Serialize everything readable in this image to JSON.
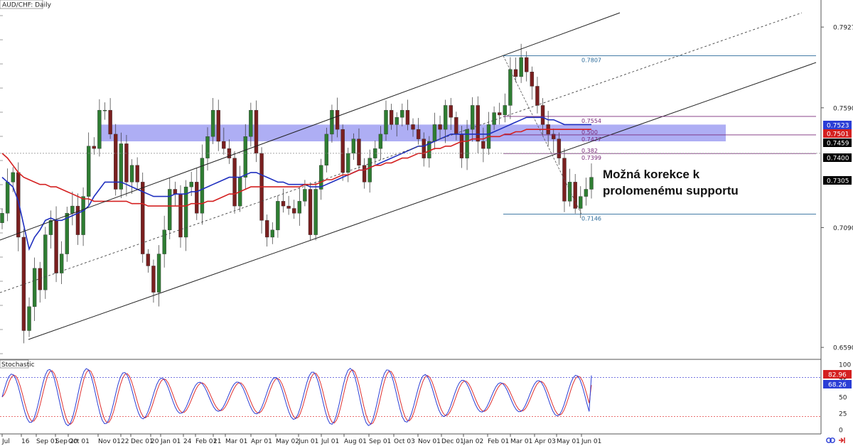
{
  "title": "AUD/CHF: Daily",
  "indicator_title": "Stochastic",
  "annotation": [
    "Možná korekce k",
    "prolomenému supportu"
  ],
  "colors": {
    "bull": "#2e7d32",
    "bear": "#7a1f1f",
    "ma_fast": "#1f2fbf",
    "ma_slow": "#d42020",
    "zone": "#8f8ff0",
    "stoch_k": "#2b3ed6",
    "stoch_d": "#e03030",
    "fib": "#7a2a7a",
    "fib_level": "#2a6a9a"
  },
  "icons": [
    "chain-link-icon",
    "arrow-exit-icon"
  ],
  "chart_data": {
    "type": "candlestick",
    "symbol": "AUD/CHF",
    "timeframe": "Daily",
    "x_ticks": [
      "Jul",
      "16",
      "Sep 01",
      "Sep 20",
      "Oct 01",
      "Nov 01",
      "22",
      "Dec 01",
      "20",
      "Jan 01",
      "24",
      "Feb 01",
      "21",
      "Mar 01",
      "Apr 01",
      "May 02",
      "Jun 01",
      "Jul 01",
      "Aug 01",
      "Sep 01",
      "Oct 03",
      "Nov 01",
      "Dec 01",
      "Jan 02",
      "Feb 01",
      "Mar 01",
      "Apr 03",
      "May 01",
      "Jun 01"
    ],
    "y_ticks": [
      "0.7927",
      "0.7590",
      "0.7090",
      "0.6590"
    ],
    "ylim": [
      0.654,
      0.804
    ],
    "price_badges": [
      {
        "label": "0.7523",
        "value": 0.7523,
        "color": "#2b3ed6"
      },
      {
        "label": "0.7501",
        "value": 0.7501,
        "color": "#d42020"
      },
      {
        "label": "0.7459",
        "value": 0.7459,
        "color": "#000000"
      },
      {
        "label": "0.7400",
        "value": 0.74,
        "color": "#000000"
      },
      {
        "label": "0.7305",
        "value": 0.7305,
        "color": "#000000"
      }
    ],
    "resistance_zone": [
      0.745,
      0.752
    ],
    "horizontal_line": 0.74,
    "fib_high": 0.7807,
    "fib_low": 0.7146,
    "fib_levels": [
      {
        "ratio_label": "",
        "price_label": "0.7807",
        "value": 0.7807
      },
      {
        "ratio_label": "",
        "price_label": "0.7554",
        "value": 0.7554
      },
      {
        "ratio_label": "0.500",
        "price_label": "0.7477",
        "value": 0.7477
      },
      {
        "ratio_label": "0.382",
        "price_label": "0.7399",
        "value": 0.7399
      },
      {
        "ratio_label": "",
        "price_label": "0.7146",
        "value": 0.7146
      }
    ],
    "series": [
      {
        "name": "Close",
        "closes": [
          0.715,
          0.728,
          0.732,
          0.705,
          0.666,
          0.676,
          0.692,
          0.683,
          0.706,
          0.712,
          0.69,
          0.698,
          0.715,
          0.718,
          0.706,
          0.722,
          0.743,
          0.742,
          0.758,
          0.758,
          0.748,
          0.725,
          0.744,
          0.728,
          0.735,
          0.728,
          0.698,
          0.693,
          0.682,
          0.698,
          0.708,
          0.725,
          0.723,
          0.705,
          0.726,
          0.728,
          0.715,
          0.738,
          0.747,
          0.758,
          0.745,
          0.742,
          0.738,
          0.718,
          0.73,
          0.747,
          0.758,
          0.74,
          0.712,
          0.705,
          0.708,
          0.72,
          0.718,
          0.717,
          0.715,
          0.72,
          0.725,
          0.706,
          0.725,
          0.735,
          0.748,
          0.758,
          0.75,
          0.732,
          0.74,
          0.746,
          0.735,
          0.728,
          0.738,
          0.742,
          0.748,
          0.758,
          0.752,
          0.755,
          0.758,
          0.752,
          0.75,
          0.746,
          0.738,
          0.745,
          0.752,
          0.75,
          0.76,
          0.755,
          0.748,
          0.738,
          0.75,
          0.76,
          0.745,
          0.742,
          0.752,
          0.757,
          0.756,
          0.76,
          0.775,
          0.772,
          0.78,
          0.774,
          0.768,
          0.76,
          0.752,
          0.748,
          0.746,
          0.738,
          0.72,
          0.728,
          0.717,
          0.722,
          0.725,
          0.73
        ]
      },
      {
        "name": "MA fast",
        "values": [
          0.73,
          0.728,
          0.726,
          0.72,
          0.71,
          0.7,
          0.705,
          0.708,
          0.712,
          0.713,
          0.712,
          0.712,
          0.713,
          0.714,
          0.715,
          0.716,
          0.718,
          0.722,
          0.725,
          0.728,
          0.728,
          0.728,
          0.728,
          0.727,
          0.726,
          0.725,
          0.724,
          0.723,
          0.722,
          0.722,
          0.722,
          0.722,
          0.723,
          0.723,
          0.723,
          0.724,
          0.724,
          0.725,
          0.726,
          0.727,
          0.728,
          0.729,
          0.73,
          0.73,
          0.73,
          0.731,
          0.732,
          0.732,
          0.731,
          0.73,
          0.729,
          0.728,
          0.728,
          0.727,
          0.727,
          0.727,
          0.727,
          0.726,
          0.726,
          0.726,
          0.727,
          0.728,
          0.729,
          0.73,
          0.731,
          0.732,
          0.733,
          0.733,
          0.734,
          0.735,
          0.736,
          0.737,
          0.738,
          0.739,
          0.74,
          0.741,
          0.742,
          0.743,
          0.743,
          0.744,
          0.745,
          0.746,
          0.747,
          0.748,
          0.748,
          0.748,
          0.748,
          0.748,
          0.748,
          0.748,
          0.748,
          0.749,
          0.75,
          0.751,
          0.752,
          0.753,
          0.754,
          0.755,
          0.755,
          0.755,
          0.755,
          0.754,
          0.754,
          0.753,
          0.752,
          0.752,
          0.752,
          0.752,
          0.752,
          0.752
        ]
      },
      {
        "name": "MA slow",
        "values": [
          0.74,
          0.738,
          0.735,
          0.732,
          0.73,
          0.729,
          0.728,
          0.727,
          0.727,
          0.726,
          0.726,
          0.725,
          0.724,
          0.723,
          0.722,
          0.721,
          0.721,
          0.72,
          0.72,
          0.72,
          0.72,
          0.72,
          0.72,
          0.72,
          0.719,
          0.719,
          0.719,
          0.718,
          0.718,
          0.718,
          0.718,
          0.718,
          0.718,
          0.718,
          0.718,
          0.719,
          0.719,
          0.719,
          0.72,
          0.72,
          0.721,
          0.722,
          0.723,
          0.723,
          0.724,
          0.725,
          0.726,
          0.726,
          0.726,
          0.726,
          0.726,
          0.726,
          0.726,
          0.726,
          0.726,
          0.726,
          0.727,
          0.727,
          0.727,
          0.728,
          0.729,
          0.729,
          0.73,
          0.731,
          0.731,
          0.732,
          0.733,
          0.733,
          0.734,
          0.735,
          0.735,
          0.736,
          0.736,
          0.737,
          0.738,
          0.738,
          0.739,
          0.74,
          0.74,
          0.741,
          0.742,
          0.742,
          0.743,
          0.743,
          0.744,
          0.745,
          0.745,
          0.746,
          0.746,
          0.746,
          0.747,
          0.747,
          0.747,
          0.748,
          0.748,
          0.749,
          0.749,
          0.75,
          0.75,
          0.75,
          0.75,
          0.75,
          0.75,
          0.75,
          0.75,
          0.75,
          0.75,
          0.75,
          0.75,
          0.75
        ]
      }
    ],
    "stochastic": {
      "y_ticks": [
        "100",
        "75",
        "50",
        "25",
        "0"
      ],
      "ylim": [
        0,
        100
      ],
      "levels": [
        80,
        20
      ],
      "k_label": "82.96",
      "k_value": 82.96,
      "d_label": "68.26",
      "d_value": 68.26
    }
  }
}
